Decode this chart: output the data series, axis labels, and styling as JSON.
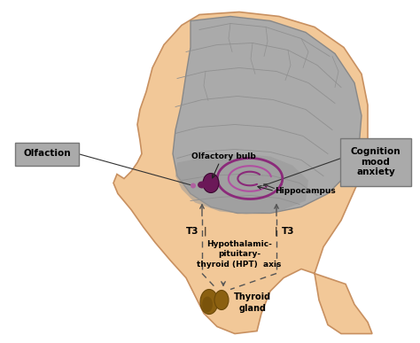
{
  "bg_color": "#FFFFFF",
  "head_skin_color": "#F2C898",
  "head_outline_color": "#C89060",
  "brain_fill_color": "#AAAAAA",
  "brain_outline_color": "#888888",
  "brain_dark_color": "#989898",
  "hippocampus_color": "#8B2A7A",
  "hippocampus_light": "#B050A0",
  "olfactory_bulb_color": "#6B1858",
  "thyroid_color": "#8B6010",
  "thyroid_dark": "#6A4808",
  "box_fill_color": "#AAAAAA",
  "box_text_color": "#000000",
  "dashed_line_color": "#555555",
  "annotation_text_color": "#000000",
  "labels": {
    "olfaction": "Olfaction",
    "olfactory_bulb": "Olfactory bulb",
    "hippocampus": "Hippocampus",
    "cognition": "Cognition\nmood\nanxiety",
    "t3_left": "T3",
    "t3_right": "T3",
    "hypothalamic": "Hypothalamic-\npituitary-\nthyroid (HPT)  axis",
    "thyroid_gland": "Thyroid\ngland"
  },
  "figsize": [
    4.74,
    3.87
  ],
  "dpi": 100
}
